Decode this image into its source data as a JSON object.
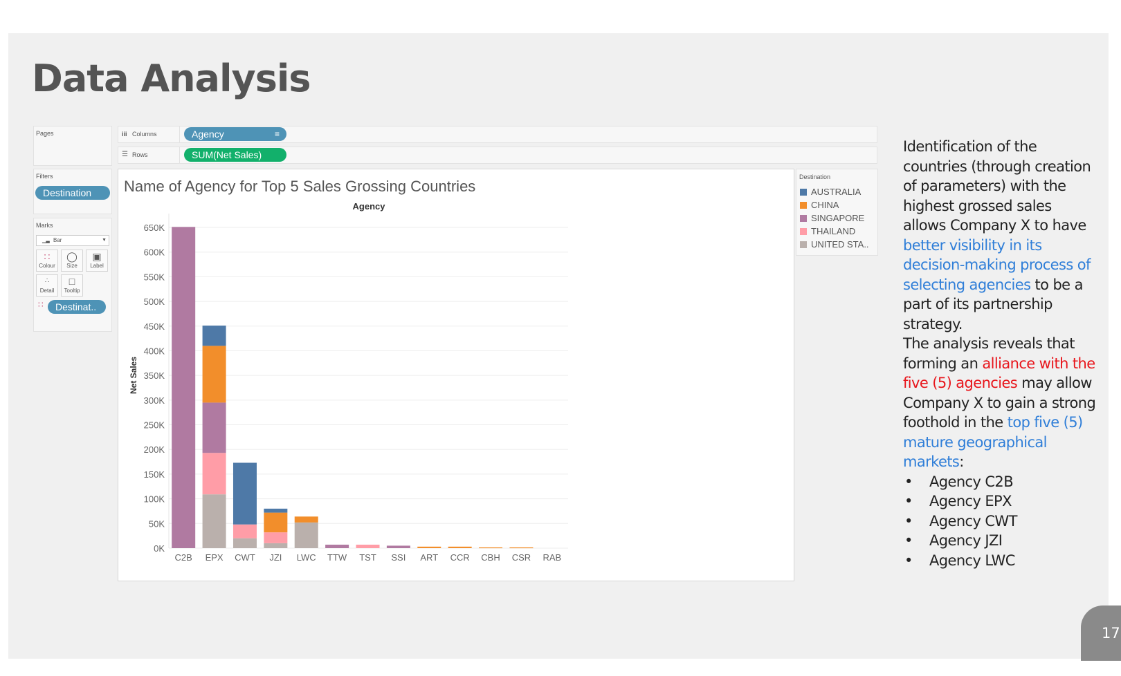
{
  "slide": {
    "title": "Data Analysis",
    "page_number": "17"
  },
  "tableau": {
    "pages_label": "Pages",
    "columns_label": "Columns",
    "columns_pill": "Agency",
    "rows_label": "Rows",
    "rows_pill": "SUM(Net Sales)",
    "filters_label": "Filters",
    "filters_pill": "Destination",
    "marks_label": "Marks",
    "marks_type": "Bar",
    "marks_buttons": [
      "Colour",
      "Size",
      "Label",
      "Detail",
      "Tooltip"
    ],
    "marks_pill": "Destinat..",
    "legend_title": "Destination"
  },
  "colors": {
    "AUSTRALIA": "#4e79a7",
    "CHINA": "#f28e2b",
    "SINGAPORE": "#b07aa1",
    "THAILAND": "#ff9da7",
    "UNITED STATES": "#bab0ac"
  },
  "chart_data": {
    "type": "bar",
    "stacked": true,
    "title": "Name of Agency for  Top 5 Sales Grossing Countries",
    "xlabel": "Agency",
    "ylabel": "Net Sales",
    "ylim": [
      0,
      650000
    ],
    "yticks": [
      0,
      50000,
      100000,
      150000,
      200000,
      250000,
      300000,
      350000,
      400000,
      450000,
      500000,
      550000,
      600000,
      650000
    ],
    "ytick_labels": [
      "0K",
      "50K",
      "100K",
      "150K",
      "200K",
      "250K",
      "300K",
      "350K",
      "400K",
      "450K",
      "500K",
      "550K",
      "600K",
      "650K"
    ],
    "grid": true,
    "legend": "right",
    "categories": [
      "C2B",
      "EPX",
      "CWT",
      "JZI",
      "LWC",
      "TTW",
      "TST",
      "SSI",
      "ART",
      "CCR",
      "CBH",
      "CSR",
      "RAB"
    ],
    "series": [
      {
        "name": "UNITED STA..",
        "key": "UNITED STATES",
        "values": [
          0,
          109000,
          20000,
          10000,
          52000,
          0,
          0,
          0,
          0,
          0,
          0,
          0,
          0
        ]
      },
      {
        "name": "THAILAND",
        "key": "THAILAND",
        "values": [
          0,
          84000,
          28000,
          22000,
          0,
          0,
          7000,
          0,
          0,
          0,
          0,
          0,
          0
        ]
      },
      {
        "name": "SINGAPORE",
        "key": "SINGAPORE",
        "values": [
          651000,
          102000,
          0,
          0,
          0,
          7000,
          0,
          5000,
          0,
          0,
          0,
          0,
          0
        ]
      },
      {
        "name": "CHINA",
        "key": "CHINA",
        "values": [
          0,
          115000,
          0,
          40000,
          12000,
          0,
          0,
          0,
          3000,
          3000,
          1500,
          1500,
          0
        ]
      },
      {
        "name": "AUSTRALIA",
        "key": "AUSTRALIA",
        "values": [
          0,
          41000,
          125000,
          8000,
          0,
          0,
          0,
          0,
          0,
          0,
          0,
          0,
          0
        ]
      }
    ],
    "legend_order": [
      "AUSTRALIA",
      "CHINA",
      "SINGAPORE",
      "THAILAND",
      "UNITED STATES"
    ],
    "legend_labels": [
      "AUSTRALIA",
      "CHINA",
      "SINGAPORE",
      "THAILAND",
      "UNITED STA.."
    ]
  },
  "side_text": {
    "p1_a": "Identification of the countries (through creation of parameters) with the highest grossed sales allows Company X to have ",
    "p1_b": "better visibility in its decision-making process of selecting agencies",
    "p1_c": " to be a part of its partnership strategy.",
    "p2_a": "The analysis reveals that forming an ",
    "p2_b": "alliance with the five (5) agencies",
    "p2_c": " may allow Company X to gain a strong foothold in the ",
    "p2_d": "top five (5) mature geographical markets",
    "p2_e": ":",
    "bullets": [
      "Agency C2B",
      "Agency EPX",
      "Agency CWT",
      "Agency JZI",
      "Agency LWC"
    ]
  }
}
